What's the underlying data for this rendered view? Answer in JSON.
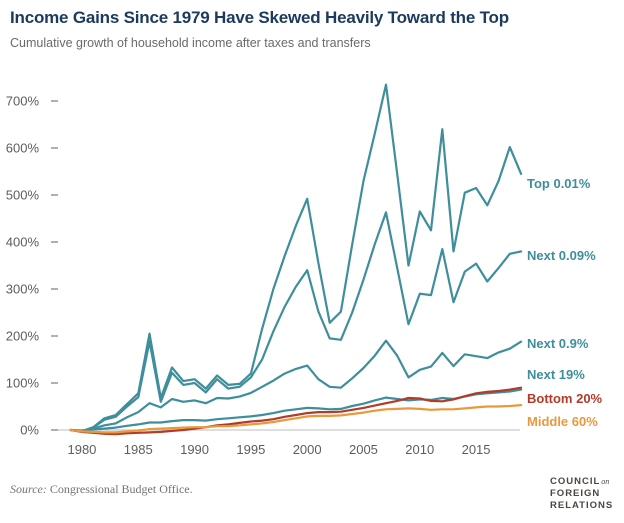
{
  "header": {
    "title": "Income Gains Since 1979 Have Skewed Heavily Toward the Top",
    "subtitle": "Cumulative growth of household income after taxes and transfers"
  },
  "chart_data": {
    "type": "line",
    "title": "Income Gains Since 1979 Have Skewed Heavily Toward the Top",
    "subtitle": "Cumulative growth of household income after taxes and transfers",
    "xlabel": "",
    "ylabel": "",
    "grid": false,
    "legend_position": "right-of-line-ends",
    "ylim": [
      0,
      700
    ],
    "y_tick_labels": [
      "0%",
      "100%",
      "200%",
      "300%",
      "400%",
      "500%",
      "600%",
      "700%"
    ],
    "x_tick_labels": [
      "1980",
      "1985",
      "1990",
      "1995",
      "2000",
      "2005",
      "2010",
      "2015"
    ],
    "x_range": [
      1979,
      2019
    ],
    "years": [
      1979,
      1980,
      1981,
      1982,
      1983,
      1984,
      1985,
      1986,
      1987,
      1988,
      1989,
      1990,
      1991,
      1992,
      1993,
      1994,
      1995,
      1996,
      1997,
      1998,
      1999,
      2000,
      2001,
      2002,
      2003,
      2004,
      2005,
      2006,
      2007,
      2008,
      2009,
      2010,
      2011,
      2012,
      2013,
      2014,
      2015,
      2016,
      2017,
      2018,
      2019
    ],
    "unit": "%",
    "series": [
      {
        "name": "Top 0.01%",
        "color": "#3E8E9B",
        "values": [
          0,
          -3,
          6,
          25,
          32,
          55,
          78,
          205,
          68,
          133,
          104,
          108,
          88,
          116,
          96,
          98,
          120,
          215,
          300,
          370,
          435,
          492,
          355,
          228,
          252,
          395,
          530,
          630,
          735,
          545,
          350,
          465,
          425,
          640,
          380,
          505,
          515,
          478,
          530,
          602,
          545
        ]
      },
      {
        "name": "Next 0.09%",
        "color": "#3E8E9B",
        "values": [
          0,
          -2,
          5,
          22,
          28,
          50,
          70,
          188,
          60,
          122,
          96,
          100,
          80,
          108,
          88,
          92,
          112,
          150,
          210,
          262,
          305,
          340,
          252,
          195,
          192,
          250,
          320,
          395,
          463,
          345,
          225,
          290,
          287,
          385,
          272,
          337,
          354,
          316,
          345,
          375,
          380
        ]
      },
      {
        "name": "Next 0.9%",
        "color": "#3E8E9B",
        "values": [
          0,
          -2,
          3,
          10,
          14,
          27,
          38,
          57,
          48,
          66,
          60,
          63,
          57,
          68,
          67,
          71,
          79,
          92,
          105,
          120,
          130,
          137,
          108,
          92,
          90,
          110,
          132,
          158,
          190,
          158,
          112,
          128,
          135,
          164,
          136,
          161,
          157,
          153,
          165,
          173,
          188
        ]
      },
      {
        "name": "Next 19%",
        "color": "#3E8E9B",
        "values": [
          0,
          -1,
          1,
          3,
          5,
          9,
          12,
          16,
          16,
          19,
          21,
          21,
          20,
          23,
          25,
          27,
          29,
          32,
          36,
          41,
          44,
          47,
          46,
          44,
          45,
          51,
          56,
          63,
          69,
          66,
          63,
          65,
          64,
          68,
          66,
          71,
          76,
          78,
          80,
          82,
          86
        ]
      },
      {
        "name": "Bottom 20%",
        "color": "#B23B2A",
        "values": [
          0,
          -4,
          -6,
          -8,
          -9,
          -7,
          -6,
          -5,
          -4,
          -2,
          0,
          3,
          6,
          10,
          12,
          15,
          18,
          20,
          23,
          28,
          32,
          36,
          38,
          38,
          39,
          43,
          47,
          52,
          57,
          62,
          68,
          67,
          62,
          61,
          65,
          72,
          78,
          81,
          83,
          86,
          90
        ]
      },
      {
        "name": "Middle 60%",
        "color": "#E8993B",
        "values": [
          0,
          -3,
          -4,
          -5,
          -5,
          -3,
          -1,
          2,
          3,
          4,
          5,
          6,
          6,
          8,
          8,
          10,
          12,
          14,
          17,
          21,
          25,
          29,
          30,
          30,
          31,
          34,
          37,
          41,
          44,
          45,
          46,
          45,
          43,
          44,
          44,
          46,
          48,
          50,
          50,
          51,
          53
        ]
      }
    ]
  },
  "footer": {
    "source_label": "Source:",
    "source_text": " Congressional Budget Office.",
    "logo_line1": "COUNCIL",
    "logo_on": "on",
    "logo_line2": "FOREIGN",
    "logo_line3": "RELATIONS"
  }
}
